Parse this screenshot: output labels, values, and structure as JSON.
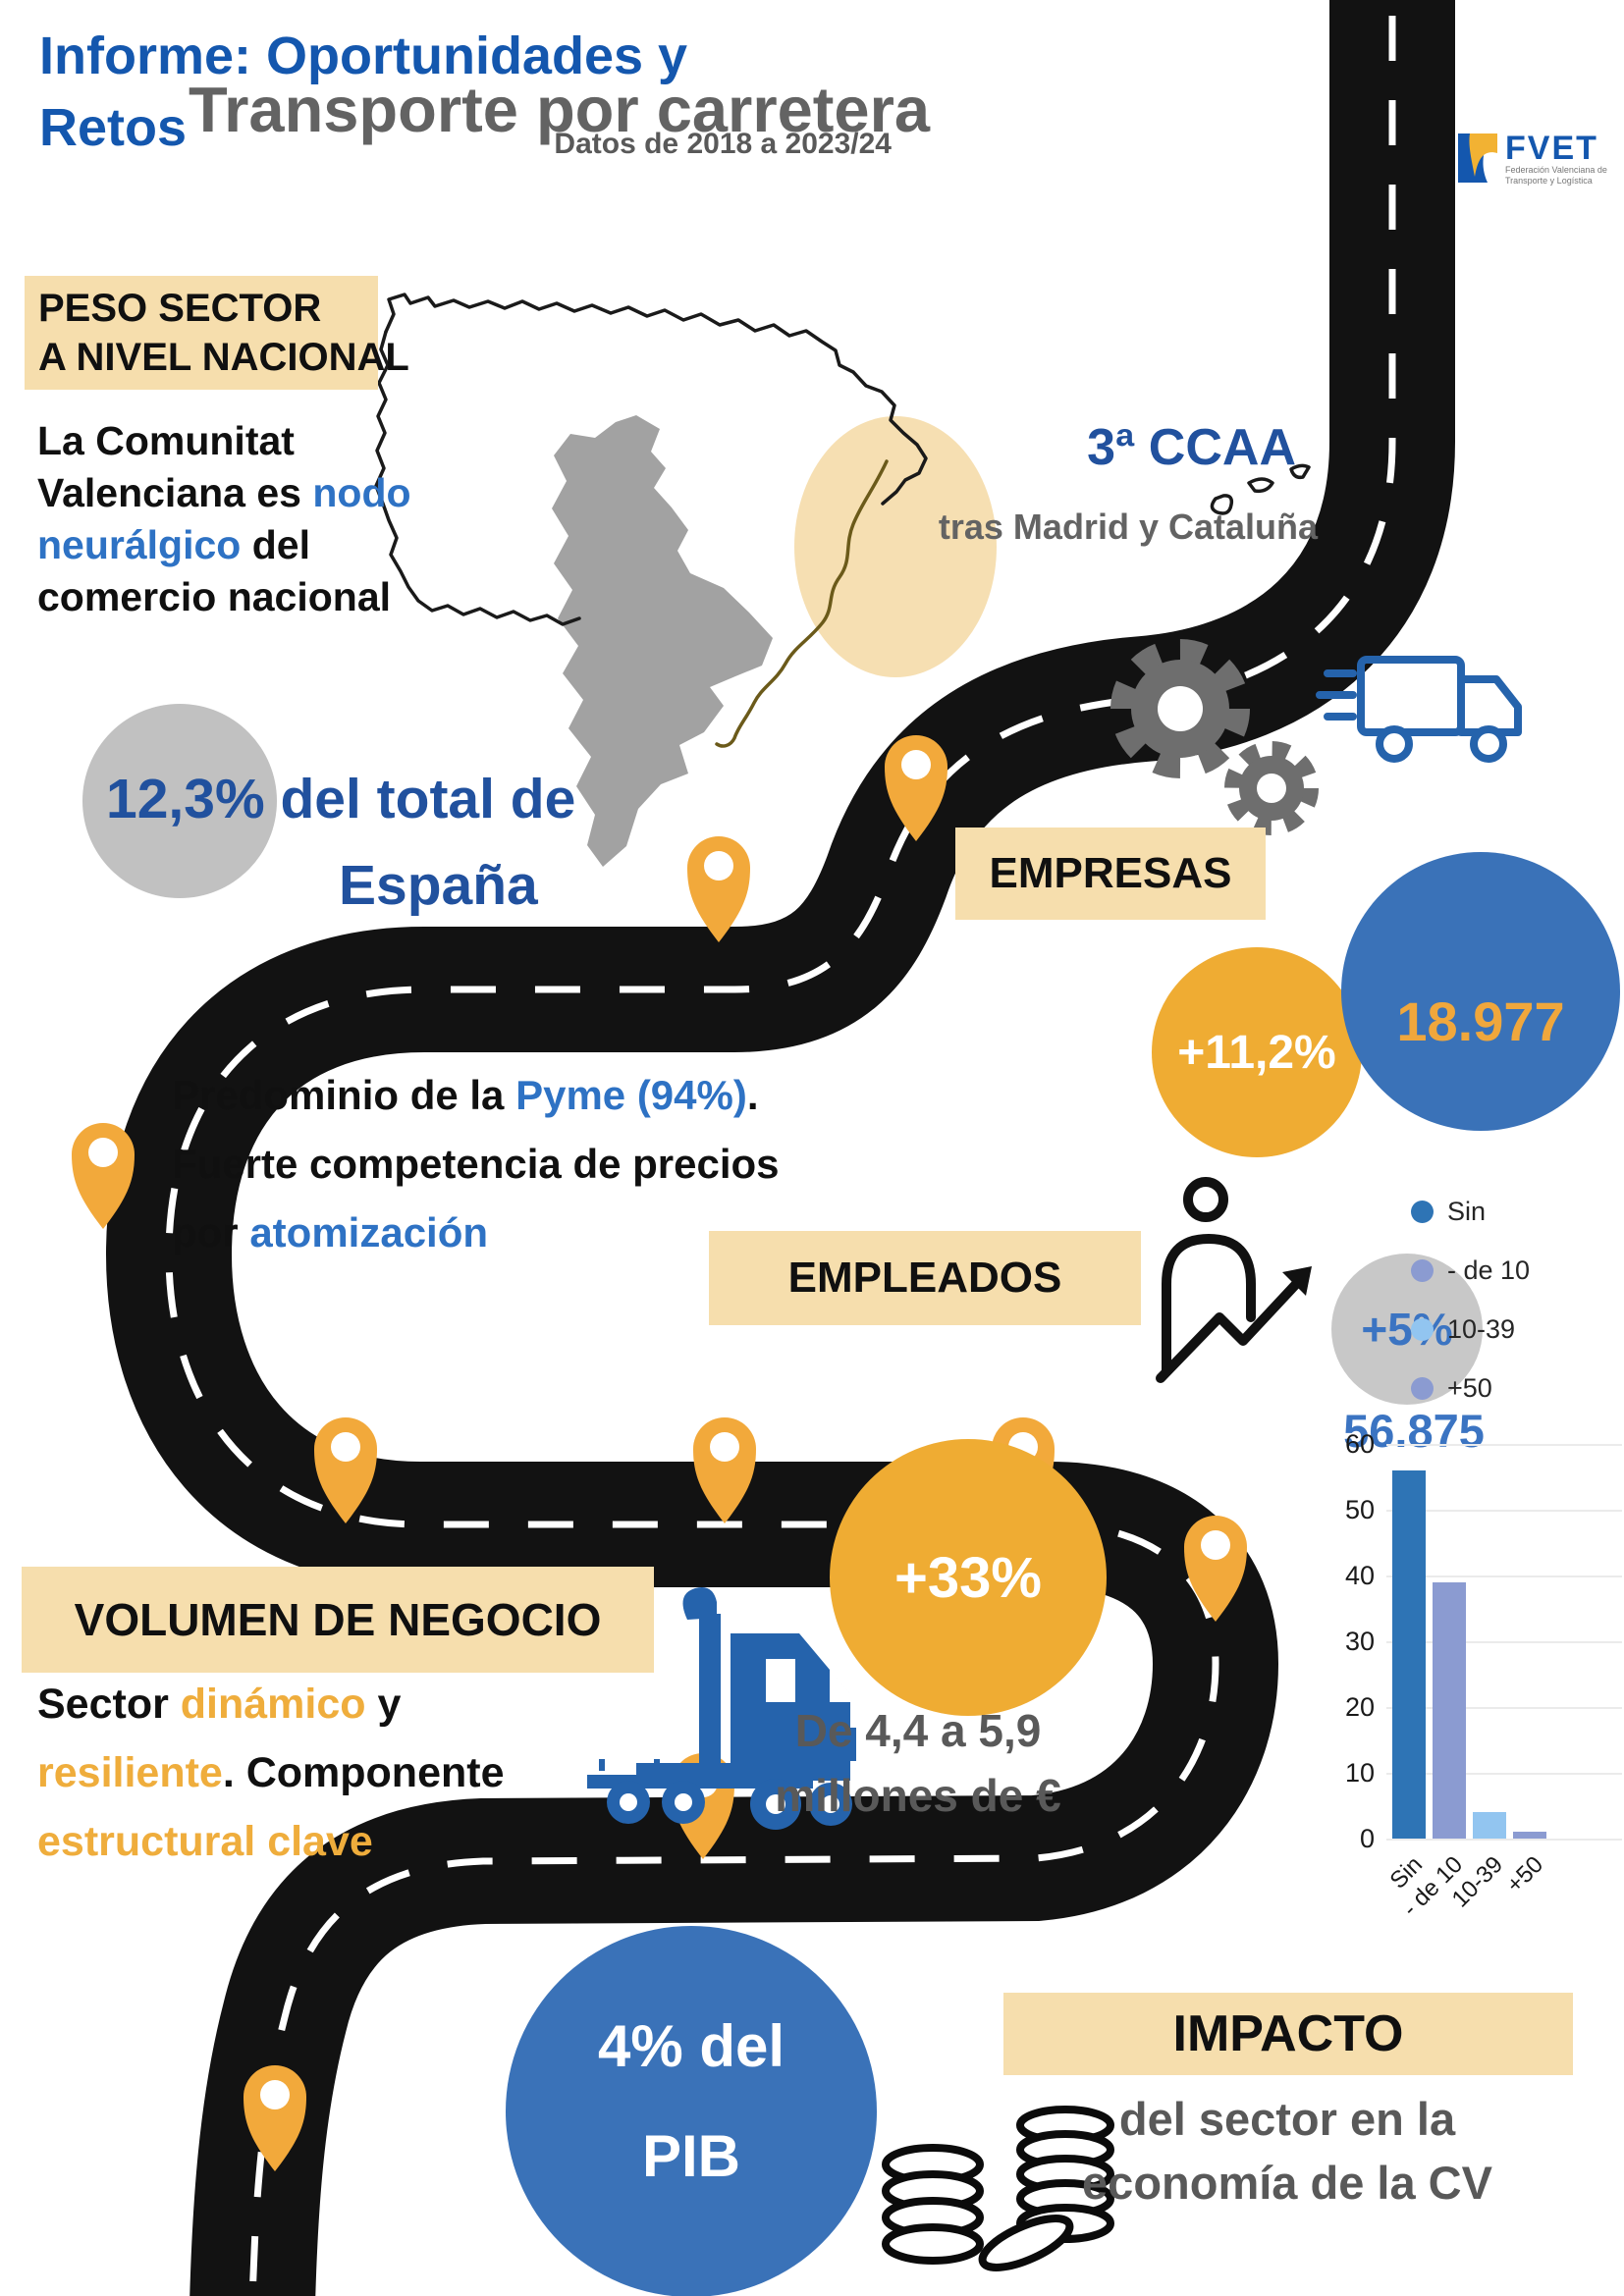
{
  "header": {
    "title_line1": "Informe: Oportunidades y",
    "title_line2": "Retos",
    "main_title": "Transporte por carretera",
    "subtitle": "Datos de 2018 a 2023/24",
    "logo": {
      "name": "FVET",
      "tagline_line1": "Federación Valenciana de",
      "tagline_line2": "Transporte y Logística"
    }
  },
  "peso": {
    "label_line1": "PESO SECTOR",
    "label_line2": "A NIVEL NACIONAL",
    "body": {
      "t1": "La Comunitat Valenciana es ",
      "t2": "nodo neurálgico",
      "t3": " del comercio nacional"
    },
    "stat_value": "12,3%",
    "stat_text": " del total de",
    "stat_text2": "España",
    "rank": "3ª CCAA",
    "rank_sub": "tras Madrid y Cataluña"
  },
  "empresas": {
    "label": "EMPRESAS",
    "growth": "+11,2%",
    "total": "18.977",
    "body": {
      "l1a": "Predominio de la ",
      "l1b": "Pyme (94%)",
      "l1c": ".",
      "l2": "Fuerte competencia de precios",
      "l3a": "por ",
      "l3b": "atomización"
    }
  },
  "empleados": {
    "label": "EMPLEADOS",
    "growth": "+5%",
    "total": "56.875"
  },
  "chart_data": {
    "type": "bar",
    "categories": [
      "Sin",
      "- de 10",
      "10-39",
      "+50"
    ],
    "values": [
      56,
      39,
      4,
      1
    ],
    "colors": [
      "#2E74B5",
      "#8B9BD1",
      "#92C5F0",
      "#8B9BD1"
    ],
    "yticks": [
      0,
      10,
      20,
      30,
      40,
      50,
      60
    ],
    "ylim": [
      0,
      60
    ],
    "grid": true,
    "legend_position": "top-right",
    "title": "",
    "xlabel": "",
    "ylabel": ""
  },
  "volumen": {
    "label": "VOLUMEN DE NEGOCIO",
    "body": {
      "l1a": "Sector ",
      "l1b": "dinámico",
      "l1c": " y",
      "l2a": "resiliente",
      "l2b": ". Componente",
      "l3": "estructural clave"
    },
    "growth": "+33%",
    "range_line1": "De 4,4 a 5,9",
    "range_line2": "millones de €"
  },
  "impacto": {
    "pib_line1": "4% del",
    "pib_line2": "PIB",
    "label": "IMPACTO",
    "sub_line1": "del sector en la",
    "sub_line2": "economía de la CV"
  },
  "colors": {
    "accent_blue": "#2E72C4",
    "deep_blue": "#21519E",
    "circle_blue": "#3A72B8",
    "highlight_tan": "#F6DEAD",
    "accent_yellow": "#EFAC33",
    "pin_yellow": "#F2A93B",
    "road_black": "#121212",
    "gray_region": "#A2A2A2"
  },
  "icons": [
    "fvet-logo-icon",
    "spain-map-icon",
    "gear-icon",
    "delivery-truck-icon",
    "location-pin-icon",
    "person-growth-icon",
    "semi-truck-icon",
    "coins-icon"
  ]
}
